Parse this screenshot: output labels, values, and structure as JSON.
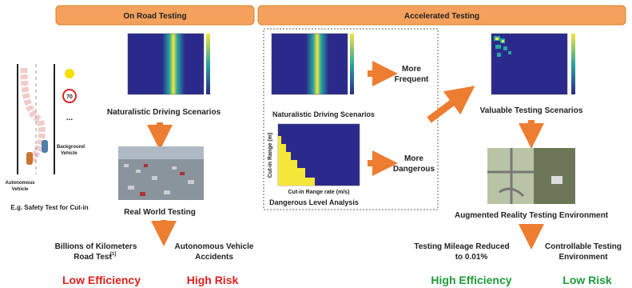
{
  "left_panel": {
    "banner": "On Road Testing",
    "scenario_caption": "Naturalistic Driving Scenarios",
    "road": {
      "background_label": [
        "Background",
        "Vehicle"
      ],
      "autonomous_label": [
        "Autonomous",
        "Vehicle"
      ],
      "speed_sign": "70",
      "more": "..."
    },
    "example_caption": "E.g. Safety Test for Cut-in",
    "real_world_caption": "Real World Testing",
    "road_test": {
      "lines": [
        "Billions of Kilometers",
        "Road Test"
      ],
      "ref": "[1]"
    },
    "accidents": [
      "Autonomous Vehicle",
      "Accidents"
    ],
    "outcome_efficiency": "Low Efficiency",
    "outcome_risk": "High Risk"
  },
  "right_panel": {
    "banner": "Accelerated Testing",
    "scenario_caption": "Naturalistic Driving Scenarios",
    "more_frequent": [
      "More",
      "Frequent"
    ],
    "danger_plot": {
      "y_label": "Cut-in Range (m)",
      "x_label": "Cut-in Range rate (m/s)"
    },
    "danger_caption": "Dangerous Level Analysis",
    "more_dangerous": [
      "More",
      "Dangerous"
    ],
    "valuable_caption": "Valuable Testing Scenarios",
    "ar_caption": "Augmented Reality Testing Environment",
    "mileage": [
      "Testing Mileage Reduced",
      "to 0.01%"
    ],
    "controllable": [
      "Controllable Testing",
      "Environment"
    ],
    "outcome_efficiency": "High Efficiency",
    "outcome_risk": "Low Risk"
  }
}
